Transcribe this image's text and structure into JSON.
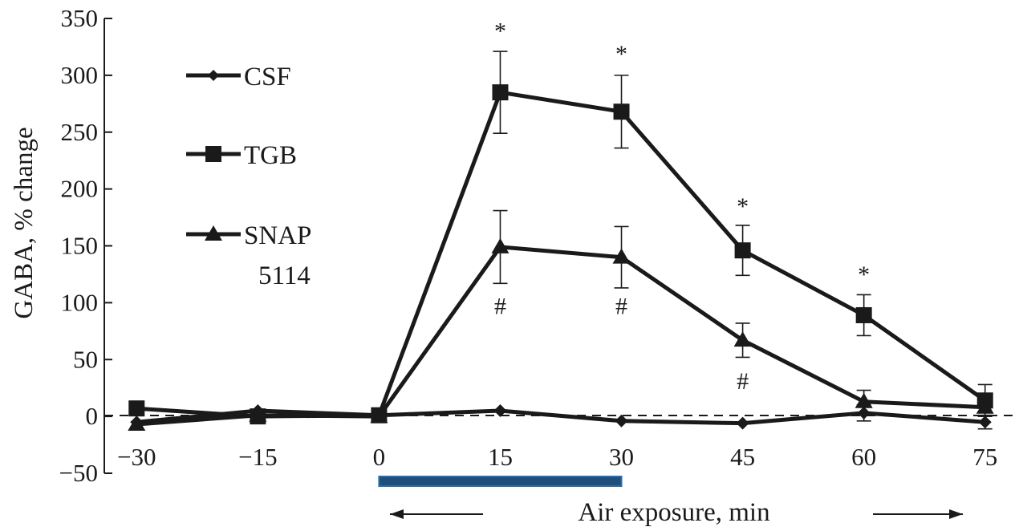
{
  "chart_data": {
    "type": "line",
    "title": "",
    "xlabel": "Air exposure, min",
    "ylabel": "GABA, % change",
    "x": [
      -30,
      -15,
      0,
      15,
      30,
      45,
      60,
      75
    ],
    "xlim": [
      -34,
      79
    ],
    "ylim": [
      -50,
      350
    ],
    "xticks": [
      -30,
      -15,
      0,
      15,
      30,
      45,
      60,
      75
    ],
    "yticks": [
      -50,
      0,
      50,
      100,
      150,
      200,
      250,
      300,
      350
    ],
    "xtick_labels": [
      "−30",
      "−15",
      "0",
      "15",
      "30",
      "45",
      "60",
      "75"
    ],
    "ytick_labels": [
      "−50",
      "0",
      "50",
      "100",
      "150",
      "200",
      "250",
      "300",
      "350"
    ],
    "grid": false,
    "legend_position": "top-left",
    "reference_line_y": 0,
    "exposure_bar": {
      "start": 0,
      "end": 30,
      "color": "#1f4e79"
    },
    "series": [
      {
        "name": "CSF",
        "marker": "diamond",
        "values": [
          -5,
          5,
          1,
          5,
          -4,
          -6,
          3,
          -5
        ],
        "errors": [
          0,
          0,
          0,
          0,
          0,
          0,
          7,
          6
        ]
      },
      {
        "name": "TGB",
        "marker": "square",
        "values": [
          7,
          0,
          1,
          285,
          268,
          146,
          89,
          14
        ],
        "errors": [
          0,
          0,
          0,
          36,
          32,
          22,
          18,
          14
        ]
      },
      {
        "name": "SNAP",
        "name_line2": "5114",
        "marker": "triangle",
        "values": [
          -7,
          1,
          0,
          149,
          140,
          67,
          13,
          8
        ],
        "errors": [
          0,
          0,
          0,
          32,
          27,
          15,
          10,
          8
        ]
      }
    ],
    "annotations": [
      {
        "text": "*",
        "x": 15,
        "y": 332
      },
      {
        "text": "*",
        "x": 30,
        "y": 312
      },
      {
        "text": "*",
        "x": 45,
        "y": 178
      },
      {
        "text": "*",
        "x": 60,
        "y": 118
      },
      {
        "text": "#",
        "x": 15,
        "y": 90
      },
      {
        "text": "#",
        "x": 30,
        "y": 90
      },
      {
        "text": "#",
        "x": 45,
        "y": 24
      }
    ]
  }
}
